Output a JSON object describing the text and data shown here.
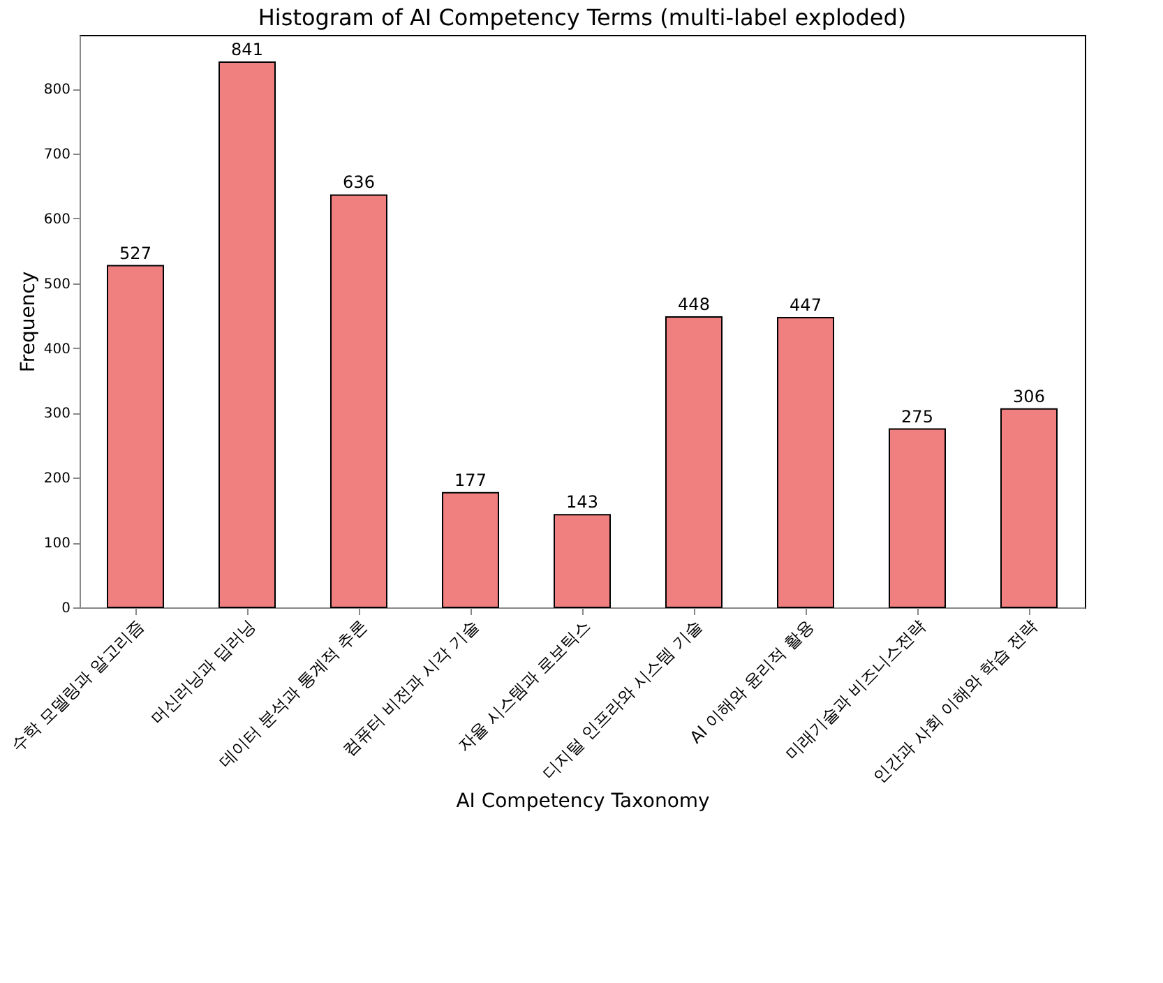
{
  "chart_data": {
    "type": "bar",
    "title": "Histogram of AI Competency Terms (multi-label exploded)",
    "xlabel": "AI Competency Taxonomy",
    "ylabel": "Frequency",
    "categories": [
      "수학 모델링과 알고리즘",
      "머신러닝과 딥러닝",
      "데이터 분석과 통계적 추론",
      "컴퓨터 비전과 시각 기술",
      "자율 시스템과 로보틱스",
      "디지털 인프라와 시스템 기술",
      "AI 이해와 윤리적 활용",
      "미래기술과 비즈니스전략",
      "인간과 사회 이해와 학습 전략"
    ],
    "values": [
      527,
      841,
      636,
      177,
      143,
      448,
      447,
      275,
      306
    ],
    "color": "#f08080",
    "ylim": [
      0,
      883
    ],
    "yticks": [
      0,
      100,
      200,
      300,
      400,
      500,
      600,
      700,
      800
    ],
    "data_labels": true,
    "grid": false
  }
}
